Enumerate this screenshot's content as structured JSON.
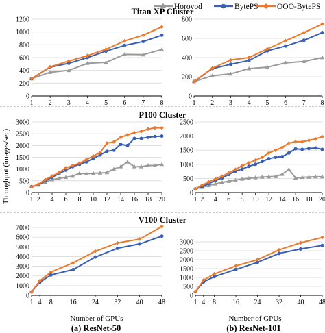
{
  "legend": {
    "items": [
      {
        "name": "Horovod",
        "color": "#9a9a9a",
        "marker": "triangle"
      },
      {
        "name": "BytePS",
        "color": "#3a5fb4",
        "marker": "circle"
      },
      {
        "name": "OOO-BytePS",
        "color": "#ec7a2a",
        "marker": "diamond"
      }
    ]
  },
  "clusters": [
    {
      "label": "Titan XP Cluster"
    },
    {
      "label": "P100 Cluster"
    },
    {
      "label": "V100 Cluster"
    }
  ],
  "shared_axes": {
    "ylabel": "Throughput (images/sec)",
    "xlabel": "Number of GPUs"
  },
  "captions": {
    "left": "(a) ResNet-50",
    "right": "(b) ResNet-101"
  },
  "chart_data": [
    {
      "type": "line",
      "cluster": "Titan XP Cluster",
      "model": "ResNet-50",
      "x": [
        1,
        2,
        3,
        4,
        5,
        6,
        7,
        8
      ],
      "xticks": [
        "1",
        "2",
        "3",
        "4",
        "5",
        "6",
        "7",
        "8"
      ],
      "ylim": [
        0,
        1200
      ],
      "yticks": [
        "0",
        "200",
        "400",
        "600",
        "800",
        "1000",
        "1200"
      ],
      "series": [
        {
          "name": "Horovod",
          "values": [
            270,
            370,
            400,
            510,
            525,
            650,
            645,
            725
          ]
        },
        {
          "name": "BytePS",
          "values": [
            270,
            450,
            510,
            600,
            700,
            790,
            850,
            950
          ]
        },
        {
          "name": "OOO-BytePS",
          "values": [
            270,
            455,
            545,
            630,
            730,
            860,
            950,
            1080
          ]
        }
      ]
    },
    {
      "type": "line",
      "cluster": "Titan XP Cluster",
      "model": "ResNet-101",
      "x": [
        1,
        2,
        3,
        4,
        5,
        6,
        7,
        8
      ],
      "xticks": [
        "1",
        "2",
        "3",
        "4",
        "5",
        "6",
        "7",
        "8"
      ],
      "ylim": [
        0,
        800
      ],
      "yticks": [
        "0",
        "200",
        "400",
        "600",
        "800"
      ],
      "series": [
        {
          "name": "Horovod",
          "values": [
            150,
            210,
            230,
            285,
            300,
            345,
            360,
            400
          ]
        },
        {
          "name": "BytePS",
          "values": [
            150,
            285,
            330,
            370,
            470,
            520,
            580,
            660
          ]
        },
        {
          "name": "OOO-BytePS",
          "values": [
            150,
            290,
            375,
            400,
            490,
            575,
            660,
            750
          ]
        }
      ]
    },
    {
      "type": "line",
      "cluster": "P100 Cluster",
      "model": "ResNet-50",
      "x": [
        1,
        2,
        3,
        4,
        5,
        6,
        7,
        8,
        9,
        10,
        11,
        12,
        13,
        14,
        15,
        16,
        17,
        18,
        19,
        20
      ],
      "xticks": [
        "1",
        "2",
        "4",
        "6",
        "8",
        "10",
        "12",
        "14",
        "16",
        "18",
        "20"
      ],
      "xtick_values": [
        1,
        2,
        4,
        6,
        8,
        10,
        12,
        14,
        16,
        18,
        20
      ],
      "ylim": [
        0,
        3000
      ],
      "yticks": [
        "0",
        "500",
        "1000",
        "1500",
        "2000",
        "2500",
        "3000"
      ],
      "series": [
        {
          "name": "Horovod",
          "values": [
            250,
            320,
            450,
            550,
            600,
            650,
            700,
            820,
            800,
            820,
            830,
            850,
            1000,
            1100,
            1300,
            1100,
            1100,
            1150,
            1150,
            1200
          ]
        },
        {
          "name": "BytePS",
          "values": [
            250,
            330,
            500,
            650,
            800,
            950,
            1100,
            1200,
            1300,
            1450,
            1600,
            1750,
            1800,
            2050,
            2000,
            2300,
            2300,
            2350,
            2380,
            2400
          ]
        },
        {
          "name": "OOO-BytePS",
          "values": [
            250,
            350,
            550,
            700,
            850,
            1050,
            1150,
            1250,
            1400,
            1550,
            1700,
            2100,
            2150,
            2350,
            2450,
            2550,
            2600,
            2700,
            2750,
            2750
          ]
        }
      ]
    },
    {
      "type": "line",
      "cluster": "P100 Cluster",
      "model": "ResNet-101",
      "x": [
        1,
        2,
        3,
        4,
        5,
        6,
        7,
        8,
        9,
        10,
        11,
        12,
        13,
        14,
        15,
        16,
        17,
        18,
        19,
        20
      ],
      "xticks": [
        "1",
        "2",
        "4",
        "6",
        "8",
        "10",
        "12",
        "14",
        "16",
        "18",
        "20"
      ],
      "xtick_values": [
        1,
        2,
        4,
        6,
        8,
        10,
        12,
        14,
        16,
        18,
        20
      ],
      "ylim": [
        0,
        2500
      ],
      "yticks": [
        "0",
        "500",
        "1000",
        "1500",
        "2000",
        "2500"
      ],
      "series": [
        {
          "name": "Horovod",
          "values": [
            130,
            190,
            250,
            310,
            360,
            400,
            440,
            480,
            510,
            530,
            550,
            560,
            570,
            650,
            820,
            520,
            540,
            550,
            560,
            560
          ]
        },
        {
          "name": "BytePS",
          "values": [
            130,
            210,
            320,
            420,
            520,
            640,
            760,
            830,
            930,
            1000,
            1100,
            1200,
            1250,
            1270,
            1400,
            1550,
            1530,
            1560,
            1580,
            1530
          ]
        },
        {
          "name": "OOO-BytePS",
          "values": [
            130,
            260,
            380,
            480,
            580,
            700,
            820,
            950,
            1050,
            1150,
            1250,
            1400,
            1500,
            1600,
            1750,
            1800,
            1800,
            1850,
            1900,
            1980
          ]
        }
      ]
    },
    {
      "type": "line",
      "cluster": "V100 Cluster",
      "model": "ResNet-50",
      "x": [
        1,
        4,
        8,
        16,
        24,
        32,
        40,
        48
      ],
      "xticks": [
        "1",
        "4",
        "8",
        "16",
        "24",
        "32",
        "40",
        "48"
      ],
      "xtick_values": [
        1,
        4,
        8,
        16,
        24,
        32,
        40,
        48
      ],
      "ylim": [
        0,
        7000
      ],
      "yticks": [
        "0",
        "1000",
        "2000",
        "3000",
        "4000",
        "5000",
        "6000",
        "7000"
      ],
      "series": [
        {
          "name": "BytePS",
          "values": [
            350,
            1350,
            2100,
            2650,
            3950,
            4850,
            5300,
            6100
          ]
        },
        {
          "name": "OOO-BytePS",
          "values": [
            350,
            1500,
            2400,
            3350,
            4550,
            5400,
            5800,
            7100
          ]
        }
      ]
    },
    {
      "type": "line",
      "cluster": "V100 Cluster",
      "model": "ResNet-101",
      "x": [
        1,
        4,
        8,
        16,
        24,
        32,
        40,
        48
      ],
      "xticks": [
        "1",
        "4",
        "8",
        "16",
        "24",
        "32",
        "40",
        "48"
      ],
      "xtick_values": [
        1,
        4,
        8,
        16,
        24,
        32,
        40,
        48
      ],
      "ylim": [
        0,
        3500
      ],
      "yticks": [
        "0",
        "500",
        "1000",
        "1500",
        "2000",
        "2500",
        "3000"
      ],
      "series": [
        {
          "name": "BytePS",
          "values": [
            200,
            750,
            1050,
            1450,
            1850,
            2350,
            2600,
            2800
          ]
        },
        {
          "name": "OOO-BytePS",
          "values": [
            200,
            850,
            1200,
            1650,
            2000,
            2550,
            2950,
            3250
          ]
        }
      ]
    }
  ]
}
